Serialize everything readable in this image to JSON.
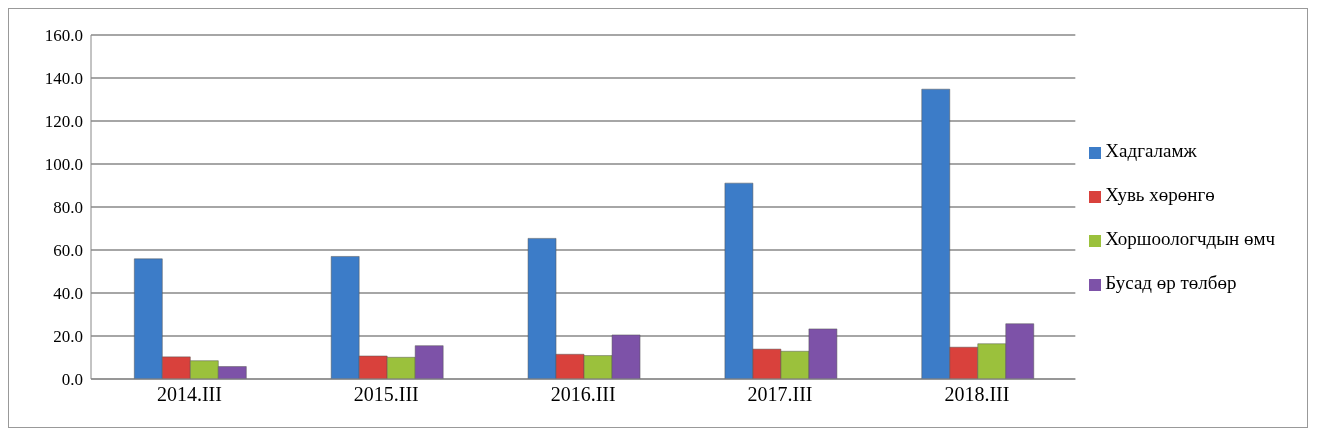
{
  "chart_data": {
    "type": "bar",
    "categories": [
      "2014.III",
      "2015.III",
      "2016.III",
      "2017.III",
      "2018.III"
    ],
    "series": [
      {
        "name": "Хадгаламж",
        "color": "#3c7cc8",
        "values": [
          55.9,
          57.0,
          65.4,
          91.1,
          134.8
        ]
      },
      {
        "name": "Хувь хөрөнгө",
        "color": "#d9413c",
        "values": [
          10.3,
          10.7,
          11.5,
          13.9,
          14.8
        ]
      },
      {
        "name": "Хоршоологчдын өмч",
        "color": "#9bc13c",
        "values": [
          8.5,
          10.1,
          10.9,
          12.9,
          16.4
        ]
      },
      {
        "name": "Бусад өр төлбөр",
        "color": "#7d52a8",
        "values": [
          5.8,
          15.5,
          20.5,
          23.3,
          25.7
        ]
      }
    ],
    "ylim": [
      0,
      160
    ],
    "yticks": [
      {
        "value": 0,
        "label": "0.0"
      },
      {
        "value": 20,
        "label": "20.0"
      },
      {
        "value": 40,
        "label": "40.0"
      },
      {
        "value": 60,
        "label": "60.0"
      },
      {
        "value": 80,
        "label": "80.0"
      },
      {
        "value": 100,
        "label": "100.0"
      },
      {
        "value": 120,
        "label": "120.0"
      },
      {
        "value": 140,
        "label": "140.0"
      },
      {
        "value": 160,
        "label": "160.0"
      }
    ],
    "grid": "y",
    "legend": "right"
  }
}
